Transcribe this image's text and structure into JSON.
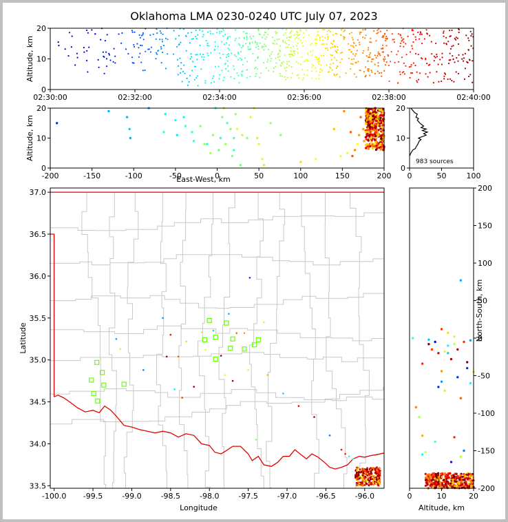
{
  "chart_data": {
    "title": "Oklahoma LMA 0230-0240 UTC July 07, 2023",
    "panels": [
      {
        "id": "time-altitude",
        "type": "scatter",
        "xlabel": "",
        "ylabel": "Altitude, km",
        "xlim": [
          "02:30:00",
          "02:40:00"
        ],
        "ylim": [
          0,
          20
        ],
        "xticks": [
          "02:30:00",
          "02:32:00",
          "02:34:00",
          "02:36:00",
          "02:38:00",
          "02:40:00"
        ],
        "yticks": [
          0,
          10,
          20
        ],
        "color_by": "time",
        "point_bands": [
          {
            "t_start": "02:30:10",
            "t_end": "02:31:50",
            "count": 45,
            "alt_range": [
              5,
              20
            ]
          },
          {
            "t_start": "02:31:50",
            "t_end": "02:33:00",
            "count": 60,
            "alt_range": [
              6,
              20
            ]
          },
          {
            "t_start": "02:33:00",
            "t_end": "02:34:30",
            "count": 140,
            "alt_range": [
              1,
              20
            ]
          },
          {
            "t_start": "02:34:30",
            "t_end": "02:36:30",
            "count": 260,
            "alt_range": [
              3,
              20
            ]
          },
          {
            "t_start": "02:36:30",
            "t_end": "02:38:00",
            "count": 190,
            "alt_range": [
              4,
              20
            ]
          },
          {
            "t_start": "02:38:00",
            "t_end": "02:40:00",
            "count": 170,
            "alt_range": [
              2,
              20
            ]
          }
        ]
      },
      {
        "id": "ew-altitude",
        "type": "scatter",
        "xlabel": "East-West, km",
        "ylabel": "Altitude, km",
        "xlim": [
          -200,
          200
        ],
        "ylim": [
          0,
          20
        ],
        "xticks": [
          -200,
          -150,
          -100,
          -50,
          0,
          50,
          100,
          150,
          200
        ],
        "yticks": [
          0,
          10,
          20
        ],
        "scattered_points": [
          [
            -192,
            15
          ],
          [
            -130,
            19
          ],
          [
            -108,
            17
          ],
          [
            -105,
            13
          ],
          [
            -104,
            10
          ],
          [
            -82,
            20
          ],
          [
            -64,
            12
          ],
          [
            -62,
            18
          ],
          [
            -50,
            16
          ],
          [
            -48,
            11
          ],
          [
            -40,
            17
          ],
          [
            -38,
            14
          ],
          [
            -30,
            12
          ],
          [
            -28,
            9
          ],
          [
            -20,
            14
          ],
          [
            -15,
            8
          ],
          [
            -12,
            8
          ],
          [
            -8,
            5
          ],
          [
            -5,
            11
          ],
          [
            -2,
            20
          ],
          [
            2,
            6
          ],
          [
            4,
            10
          ],
          [
            6,
            17
          ],
          [
            8,
            20
          ],
          [
            10,
            8
          ],
          [
            12,
            15
          ],
          [
            16,
            13
          ],
          [
            18,
            4
          ],
          [
            20,
            6
          ],
          [
            20,
            10
          ],
          [
            22,
            18
          ],
          [
            24,
            13
          ],
          [
            28,
            1
          ],
          [
            30,
            11
          ],
          [
            36,
            10
          ],
          [
            40,
            17
          ],
          [
            44,
            20
          ],
          [
            48,
            10
          ],
          [
            50,
            8
          ],
          [
            54,
            3
          ],
          [
            56,
            1
          ],
          [
            64,
            15
          ],
          [
            76,
            11
          ],
          [
            100,
            2
          ],
          [
            118,
            3
          ],
          [
            140,
            13
          ],
          [
            148,
            4
          ],
          [
            152,
            19
          ],
          [
            156,
            5
          ],
          [
            160,
            12
          ],
          [
            162,
            4
          ],
          [
            165,
            6
          ],
          [
            168,
            8
          ],
          [
            170,
            11
          ],
          [
            172,
            17
          ],
          [
            175,
            13
          ],
          [
            176,
            9
          ]
        ],
        "cluster": {
          "x_range": [
            178,
            200
          ],
          "alt_range": [
            6,
            20
          ],
          "count": 320
        }
      },
      {
        "id": "altitude-histogram",
        "type": "line",
        "xlim": [
          0,
          100
        ],
        "ylim": [
          0,
          20
        ],
        "xticks": [
          0,
          50,
          100
        ],
        "yticks": [
          0,
          10,
          20
        ],
        "annotation": "983 sources",
        "profile": [
          [
            0,
            4
          ],
          [
            2,
            5
          ],
          [
            5,
            6
          ],
          [
            9,
            6.5
          ],
          [
            10,
            7
          ],
          [
            13,
            8
          ],
          [
            15,
            9
          ],
          [
            18,
            9.5
          ],
          [
            14,
            10
          ],
          [
            20,
            10.5
          ],
          [
            26,
            11
          ],
          [
            22,
            11.5
          ],
          [
            28,
            12
          ],
          [
            20,
            12.5
          ],
          [
            26,
            13
          ],
          [
            18,
            13.5
          ],
          [
            22,
            14
          ],
          [
            16,
            15
          ],
          [
            12,
            16
          ],
          [
            14,
            16.5
          ],
          [
            10,
            17
          ],
          [
            12,
            18
          ],
          [
            8,
            18.5
          ],
          [
            6,
            19
          ],
          [
            4,
            19.5
          ],
          [
            2,
            20
          ]
        ]
      },
      {
        "id": "plan-view",
        "type": "scatter",
        "xlabel": "Longitude",
        "ylabel": "Latitude",
        "xlim": [
          -100.05,
          -95.75
        ],
        "ylim": [
          33.47,
          37.05
        ],
        "xticks": [
          -100.0,
          -99.5,
          -99.0,
          -98.5,
          -98.0,
          -97.5,
          -97.0,
          -96.5,
          -96.0
        ],
        "yticks": [
          33.5,
          34.0,
          34.5,
          35.0,
          35.5,
          36.0,
          36.5,
          37.0
        ],
        "stations": [
          [
            -99.45,
            34.97
          ],
          [
            -99.38,
            34.85
          ],
          [
            -99.52,
            34.76
          ],
          [
            -99.36,
            34.7
          ],
          [
            -99.49,
            34.6
          ],
          [
            -99.44,
            34.51
          ],
          [
            -99.1,
            34.71
          ],
          [
            -98.0,
            35.47
          ],
          [
            -97.92,
            35.27
          ],
          [
            -97.78,
            35.44
          ],
          [
            -98.06,
            35.24
          ],
          [
            -97.92,
            35.01
          ],
          [
            -97.7,
            35.25
          ],
          [
            -97.55,
            35.13
          ],
          [
            -97.73,
            35.14
          ],
          [
            -97.42,
            35.18
          ],
          [
            -97.37,
            35.24
          ]
        ],
        "sources": [
          [
            -99.2,
            35.25
          ],
          [
            -99.15,
            35.13
          ],
          [
            -98.85,
            34.88
          ],
          [
            -98.6,
            35.5
          ],
          [
            -98.55,
            35.04
          ],
          [
            -98.5,
            35.3
          ],
          [
            -98.4,
            35.04
          ],
          [
            -98.3,
            35.22
          ],
          [
            -98.35,
            34.55
          ],
          [
            -98.45,
            34.65
          ],
          [
            -98.2,
            34.68
          ],
          [
            -98.1,
            35.33
          ],
          [
            -98.05,
            35.12
          ],
          [
            -97.95,
            35.35
          ],
          [
            -97.85,
            35.05
          ],
          [
            -97.8,
            34.82
          ],
          [
            -97.7,
            34.75
          ],
          [
            -97.75,
            35.55
          ],
          [
            -97.65,
            35.32
          ],
          [
            -97.55,
            35.32
          ],
          [
            -97.5,
            34.88
          ],
          [
            -97.48,
            35.98
          ],
          [
            -97.4,
            34.05
          ],
          [
            -97.3,
            35.45
          ],
          [
            -97.25,
            34.82
          ],
          [
            -97.05,
            34.6
          ],
          [
            -96.85,
            34.45
          ],
          [
            -96.65,
            34.32
          ],
          [
            -96.45,
            34.1
          ],
          [
            -96.3,
            33.93
          ],
          [
            -96.25,
            33.88
          ],
          [
            -96.2,
            33.85
          ],
          [
            -96.15,
            33.82
          ]
        ],
        "cluster": {
          "lon_range": [
            -96.12,
            -95.8
          ],
          "lat_range": [
            33.5,
            33.72
          ],
          "count": 260
        }
      },
      {
        "id": "altitude-ns",
        "type": "scatter",
        "xlabel": "Altitude, km",
        "ylabel": "North-South, km",
        "xlim": [
          0,
          20
        ],
        "ylim": [
          -200,
          200
        ],
        "xticks": [
          0,
          10,
          20
        ],
        "yticks": [
          -200,
          -150,
          -100,
          -50,
          0,
          50,
          100,
          150,
          200
        ],
        "scattered_points": [
          [
            1,
            0
          ],
          [
            16,
            77
          ],
          [
            14,
            2
          ],
          [
            10,
            12
          ],
          [
            12,
            7
          ],
          [
            8,
            -5
          ],
          [
            9,
            -20
          ],
          [
            6,
            -8
          ],
          [
            4,
            -34
          ],
          [
            2,
            -92
          ],
          [
            3,
            -105
          ],
          [
            4,
            -130
          ],
          [
            4,
            -155
          ],
          [
            5,
            -152
          ],
          [
            8,
            -138
          ],
          [
            10,
            -58
          ],
          [
            10,
            -44
          ],
          [
            11,
            -70
          ],
          [
            12,
            -20
          ],
          [
            13,
            -28
          ],
          [
            14,
            -132
          ],
          [
            15,
            -52
          ],
          [
            16,
            -80
          ],
          [
            17,
            -150
          ],
          [
            18,
            -40
          ],
          [
            19,
            -60
          ],
          [
            20,
            -45
          ],
          [
            7,
            -15
          ],
          [
            9,
            -65
          ],
          [
            12,
            -10
          ],
          [
            15,
            -15
          ],
          [
            17,
            -5
          ],
          [
            18,
            -32
          ],
          [
            19,
            -3
          ],
          [
            6,
            -2
          ],
          [
            11,
            -18
          ],
          [
            14,
            -8
          ],
          [
            13,
            -165
          ],
          [
            16,
            -158
          ]
        ],
        "cluster": {
          "alt_range": [
            5,
            20
          ],
          "ns_range": [
            -200,
            -180
          ],
          "count": 300
        }
      }
    ]
  }
}
